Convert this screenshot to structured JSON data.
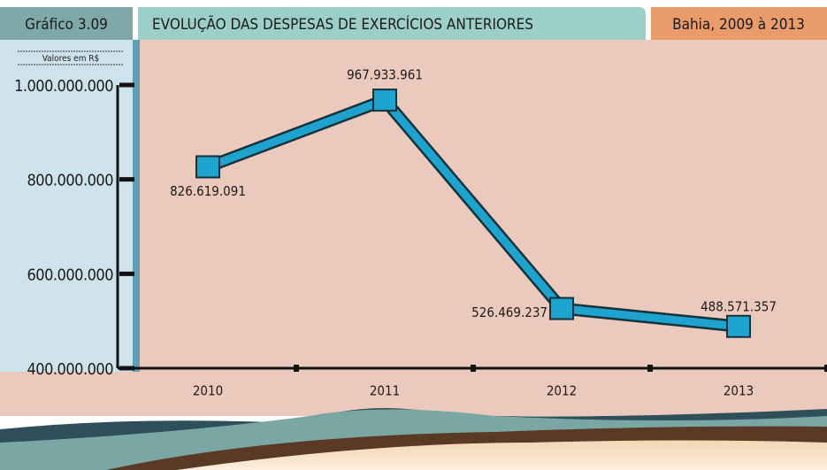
{
  "chart_data": {
    "type": "line",
    "figure_label": "Gráfico 3.09",
    "title": "EVOLUÇÃO DAS DESPESAS DE EXERCÍCIOS ANTERIORES",
    "subtitle": "Bahia, 2009 à 2013",
    "y_unit": "Valores em R$",
    "categories": [
      "2010",
      "2011",
      "2012",
      "2013"
    ],
    "series": [
      {
        "color": "#1ea3cf",
        "values": [
          826619091,
          967933961,
          526469237,
          488571357
        ],
        "value_labels": [
          "826.619.091",
          "967.933.961",
          "526.469.237",
          "488.571.357"
        ]
      }
    ],
    "ylim": [
      400000000,
      1000000000
    ],
    "yticks": [
      {
        "value": 400000000,
        "label": "400.000.000"
      },
      {
        "value": 600000000,
        "label": "600.000.000"
      },
      {
        "value": 800000000,
        "label": "800.000.000"
      },
      {
        "value": 1000000000,
        "label": "1.000.000.000"
      }
    ]
  }
}
